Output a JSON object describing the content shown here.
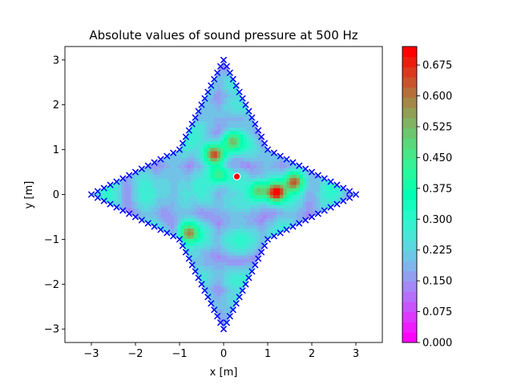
{
  "chart_data": {
    "type": "heatmap",
    "title": "Absolute values of sound pressure at 500 Hz",
    "xlabel": "x [m]",
    "ylabel": "y [m]",
    "xlim": [
      -3.6,
      3.6
    ],
    "ylim": [
      -3.3,
      3.3
    ],
    "x_ticks": [
      -3,
      -2,
      -1,
      0,
      1,
      2,
      3
    ],
    "y_ticks": [
      -3,
      -2,
      -1,
      0,
      1,
      2,
      3
    ],
    "grid": false,
    "colormap": "rainbow",
    "colorbar": {
      "range": [
        0.0,
        0.72
      ],
      "ticks": [
        "0.000",
        "0.075",
        "0.150",
        "0.225",
        "0.300",
        "0.375",
        "0.450",
        "0.525",
        "0.600",
        "0.675"
      ],
      "levels": 29
    },
    "boundary": {
      "marker": "x",
      "color": "#0000ff",
      "shape": "four-pointed star",
      "vertices": [
        [
          0,
          3
        ],
        [
          1,
          1
        ],
        [
          3,
          0
        ],
        [
          1,
          -1
        ],
        [
          0,
          -3
        ],
        [
          -1,
          -1
        ],
        [
          -3,
          0
        ],
        [
          -1,
          1
        ]
      ]
    },
    "source": {
      "position": [
        0.3,
        0.4
      ],
      "color": "#ff0000"
    },
    "hotspots": [
      {
        "x": 1.2,
        "y": 0.05,
        "value": 0.72
      },
      {
        "x": -0.2,
        "y": 0.9,
        "value": 0.66
      },
      {
        "x": 1.6,
        "y": 0.3,
        "value": 0.6
      },
      {
        "x": -0.8,
        "y": -0.85,
        "value": 0.55
      },
      {
        "x": 0.8,
        "y": 0.1,
        "value": 0.5
      },
      {
        "x": -0.1,
        "y": 0.45,
        "value": 0.5
      },
      {
        "x": 0.2,
        "y": 1.2,
        "value": 0.45
      }
    ]
  }
}
